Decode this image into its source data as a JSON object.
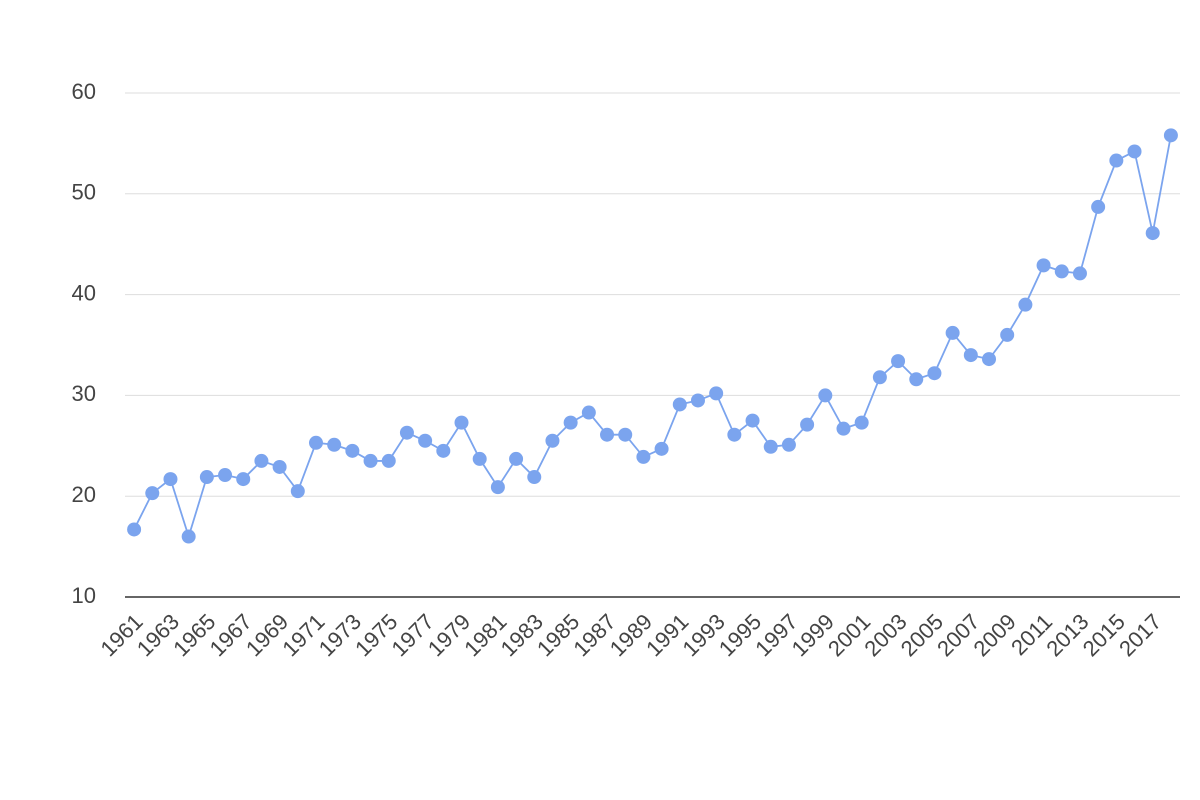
{
  "chart_data": {
    "type": "line",
    "x": [
      1961,
      1962,
      1963,
      1964,
      1965,
      1966,
      1967,
      1968,
      1969,
      1970,
      1971,
      1972,
      1973,
      1974,
      1975,
      1976,
      1977,
      1978,
      1979,
      1980,
      1981,
      1982,
      1983,
      1984,
      1985,
      1986,
      1987,
      1988,
      1989,
      1990,
      1991,
      1992,
      1993,
      1994,
      1995,
      1996,
      1997,
      1998,
      1999,
      2000,
      2001,
      2002,
      2003,
      2004,
      2005,
      2006,
      2007,
      2008,
      2009,
      2010,
      2011,
      2012,
      2013,
      2014,
      2015,
      2016,
      2017,
      2018
    ],
    "series": [
      {
        "color": "#7ba4ee",
        "values": [
          16.7,
          20.3,
          21.7,
          16.0,
          21.9,
          22.1,
          21.7,
          23.5,
          22.9,
          20.5,
          25.3,
          25.1,
          24.5,
          23.5,
          23.5,
          26.3,
          25.5,
          24.5,
          27.3,
          23.7,
          20.9,
          23.7,
          21.9,
          25.5,
          27.3,
          28.3,
          26.1,
          26.1,
          23.9,
          24.7,
          29.1,
          29.5,
          30.2,
          26.1,
          27.5,
          24.9,
          25.1,
          27.1,
          30.0,
          26.7,
          27.3,
          31.8,
          33.4,
          31.6,
          32.2,
          36.2,
          34.0,
          33.6,
          36.0,
          39.0,
          42.9,
          42.3,
          42.1,
          48.7,
          53.3,
          54.2,
          46.1,
          55.8
        ]
      }
    ],
    "xlim": [
      1960.5,
      2018.5
    ],
    "xticks": [
      1961,
      1963,
      1965,
      1967,
      1969,
      1971,
      1973,
      1975,
      1977,
      1979,
      1981,
      1983,
      1985,
      1987,
      1989,
      1991,
      1993,
      1995,
      1997,
      1999,
      2001,
      2003,
      2005,
      2007,
      2009,
      2011,
      2013,
      2015,
      2017
    ],
    "ylim": [
      10,
      60
    ],
    "yticks": [
      10,
      20,
      30,
      40,
      50,
      60
    ],
    "grid": true
  }
}
